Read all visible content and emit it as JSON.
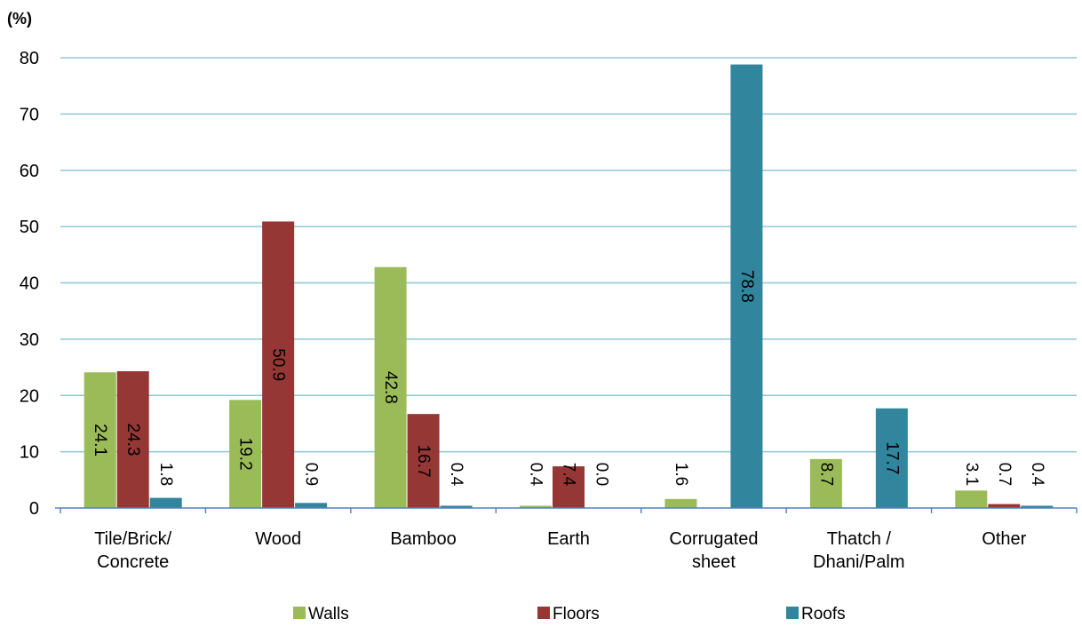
{
  "chart_data": {
    "type": "bar",
    "unit_label": "(%)",
    "categories": [
      [
        "Tile/Brick/",
        "Concrete"
      ],
      [
        "Wood"
      ],
      [
        "Bamboo"
      ],
      [
        "Earth"
      ],
      [
        "Corrugated",
        "sheet"
      ],
      [
        "Thatch /",
        "Dhani/Palm"
      ],
      [
        "Other"
      ]
    ],
    "series": [
      {
        "name": "Walls",
        "color": "#9bbb59",
        "values": [
          24.1,
          19.2,
          42.8,
          0.4,
          1.6,
          8.7,
          3.1
        ],
        "labels": [
          "24.1",
          "19.2",
          "42.8",
          "0.4",
          "1.6",
          "8.7",
          "3.1"
        ]
      },
      {
        "name": "Floors",
        "color": "#953735",
        "values": [
          24.3,
          50.9,
          16.7,
          7.4,
          0,
          0,
          0.7
        ],
        "labels": [
          "24.3",
          "50.9",
          "16.7",
          "7.4",
          "",
          "",
          "0.7"
        ]
      },
      {
        "name": "Roofs",
        "color": "#31859c",
        "values": [
          1.8,
          0.9,
          0.4,
          0.0,
          78.8,
          17.7,
          0.4
        ],
        "labels": [
          "1.8",
          "0.9",
          "0.4",
          "0.0",
          "78.8",
          "17.7",
          "0.4"
        ]
      }
    ],
    "ylim": [
      0,
      80
    ],
    "yticks": [
      "0",
      "10",
      "20",
      "30",
      "40",
      "50",
      "60",
      "70",
      "80"
    ],
    "grid": true,
    "legend_position": "bottom"
  }
}
